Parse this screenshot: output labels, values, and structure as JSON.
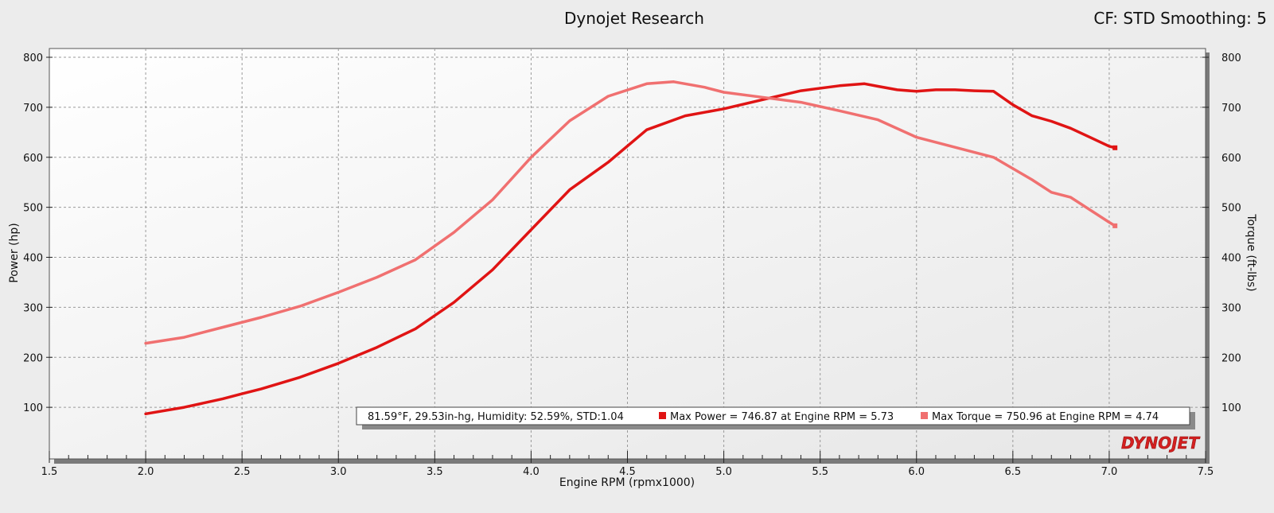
{
  "header": {
    "title": "Dynojet Research",
    "settings": "CF: STD Smoothing: 5"
  },
  "conditions_label": "81.59°F, 29.53in-hg, Humidity: 52.59%, STD:1.04",
  "legend": {
    "power_label": "Max Power = 746.87 at Engine RPM = 5.73",
    "torque_label": "Max Torque = 750.96 at Engine RPM = 4.74"
  },
  "logo_text": "DYNOJET",
  "colors": {
    "power": "#e01414",
    "torque": "#f07070",
    "background": "#ececec"
  },
  "chart_data": {
    "type": "line",
    "title": "Dynojet Research",
    "xlabel": "Engine RPM (rpmx1000)",
    "ylabel": "Power (hp)",
    "y2label": "Torque (ft-lbs)",
    "xlim": [
      1.5,
      7.5
    ],
    "ylim": [
      0,
      800
    ],
    "y2lim": [
      0,
      800
    ],
    "grid": true,
    "x_ticks": [
      "1.5",
      "2.0",
      "2.5",
      "3.0",
      "3.5",
      "4.0",
      "4.5",
      "5.0",
      "5.5",
      "6.0",
      "6.5",
      "7.0",
      "7.5"
    ],
    "y_ticks": [
      "100",
      "200",
      "300",
      "400",
      "500",
      "600",
      "700",
      "800"
    ],
    "y2_ticks": [
      "100",
      "200",
      "300",
      "400",
      "500",
      "600",
      "700",
      "800"
    ],
    "series": [
      {
        "name": "Power",
        "axis": "left",
        "x": [
          2.0,
          2.2,
          2.4,
          2.5,
          2.6,
          2.8,
          3.0,
          3.2,
          3.4,
          3.6,
          3.8,
          4.0,
          4.2,
          4.4,
          4.6,
          4.8,
          5.0,
          5.2,
          5.4,
          5.6,
          5.73,
          5.8,
          5.9,
          6.0,
          6.1,
          6.2,
          6.3,
          6.4,
          6.5,
          6.6,
          6.7,
          6.8,
          6.9,
          7.0,
          7.03
        ],
        "values": [
          87,
          100,
          117,
          127,
          137,
          160,
          188,
          220,
          257,
          310,
          375,
          455,
          535,
          590,
          655,
          683,
          697,
          715,
          733,
          743,
          747,
          742,
          735,
          732,
          735,
          735,
          733,
          732,
          705,
          683,
          672,
          658,
          640,
          622,
          619
        ]
      },
      {
        "name": "Torque",
        "axis": "right",
        "x": [
          2.0,
          2.2,
          2.4,
          2.6,
          2.8,
          3.0,
          3.2,
          3.4,
          3.6,
          3.8,
          4.0,
          4.2,
          4.4,
          4.6,
          4.74,
          4.9,
          5.0,
          5.2,
          5.4,
          5.6,
          5.8,
          6.0,
          6.2,
          6.4,
          6.6,
          6.7,
          6.8,
          7.0,
          7.03
        ],
        "values": [
          228,
          240,
          260,
          280,
          302,
          330,
          360,
          395,
          450,
          515,
          600,
          673,
          722,
          747,
          751,
          740,
          730,
          720,
          710,
          693,
          675,
          640,
          620,
          600,
          555,
          530,
          520,
          470,
          463
        ]
      }
    ]
  }
}
